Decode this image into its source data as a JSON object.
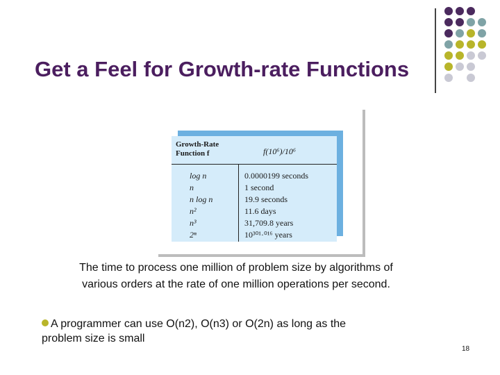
{
  "slide": {
    "title": "Get a Feel for Growth-rate Functions",
    "caption_line1": "The time to process one million of problem size by algorithms of",
    "caption_line2": "various orders at the rate of one million operations per second.",
    "bullet_line1": "A programmer can use O(n2), O(n3) or O(2n) as long as the",
    "bullet_line2": "problem size is small",
    "page_number": "18"
  },
  "table": {
    "header_col1_line1": "Growth-Rate",
    "header_col1_line2": "Function f",
    "header_col2": "f(10⁶)/10⁶",
    "rows": [
      {
        "function": "log n",
        "time": "0.0000199 seconds"
      },
      {
        "function": "n",
        "time": "1 second"
      },
      {
        "function": "n log n",
        "time": "19.9 seconds"
      },
      {
        "function": "n²",
        "time": "11.6 days"
      },
      {
        "function": "n³",
        "time": "31,709.8 years"
      },
      {
        "function": "2ⁿ",
        "time": "10³⁰¹·⁰¹⁶ years"
      }
    ]
  },
  "colors": {
    "title": "#4b1e5f",
    "dot_purple": "#4b2a5e",
    "dot_teal": "#7fa3a6",
    "dot_olive": "#b8b52a",
    "dot_gray": "#c9c9d4",
    "table_bg": "#d5ecfa",
    "table_back": "#6cb0e0"
  }
}
